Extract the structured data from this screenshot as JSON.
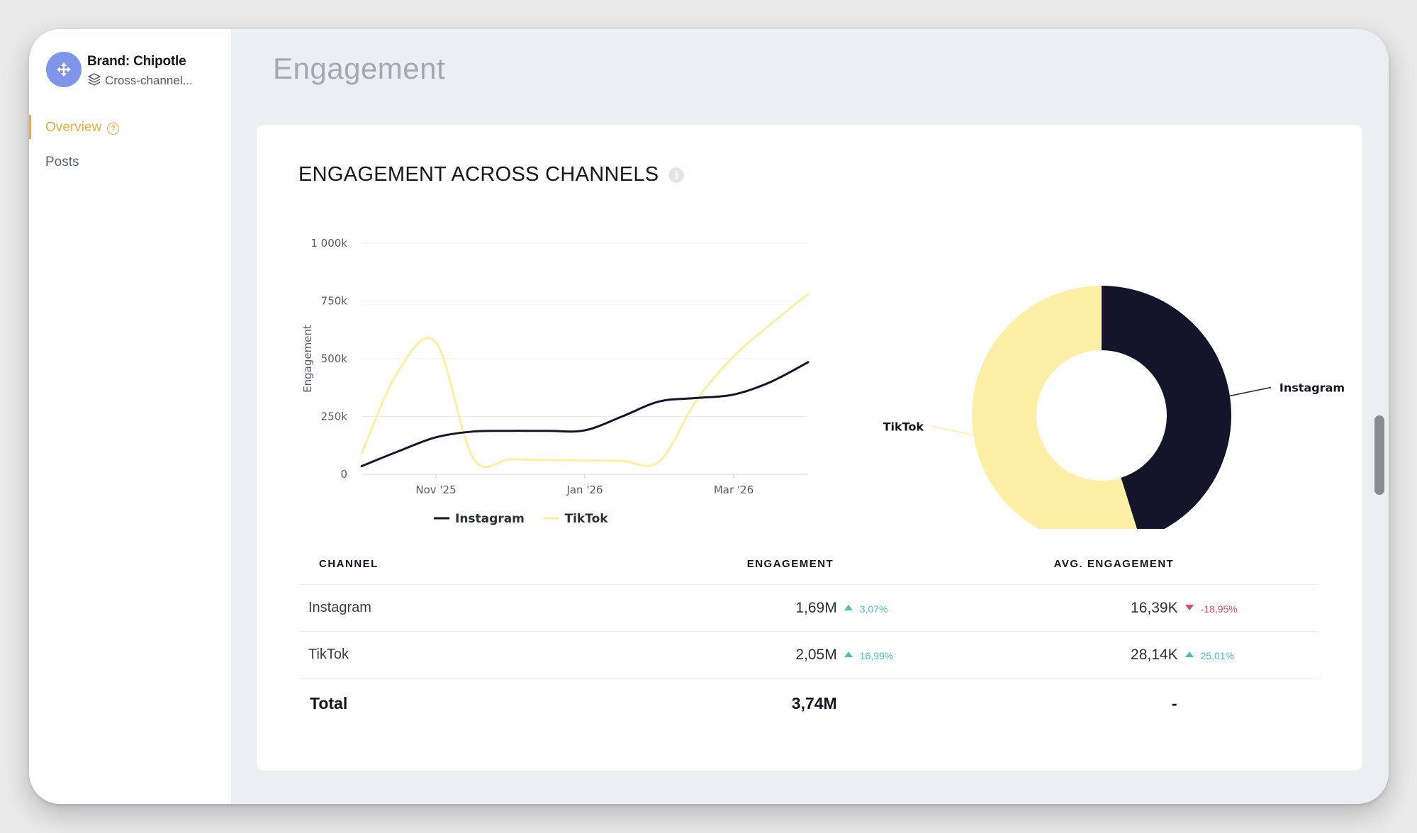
{
  "sidebar": {
    "brand_title": "Brand: Chipotle",
    "brand_subtitle": "Cross-channel...",
    "nav": [
      {
        "label": "Overview",
        "active": true,
        "help": "?"
      },
      {
        "label": "Posts",
        "active": false
      }
    ]
  },
  "page": {
    "title": "Engagement"
  },
  "card": {
    "title": "ENGAGEMENT ACROSS CHANNELS",
    "info_icon": "i"
  },
  "colors": {
    "instagram": "#14152b",
    "tiktok": "#fdf0a6",
    "accent": "#f4a93c",
    "positive": "#47c3b6",
    "negative": "#e34b5d"
  },
  "chart_data": [
    {
      "type": "line",
      "ylabel": "Engagement",
      "yticks": [
        "0",
        "250k",
        "500k",
        "750k",
        "1 000k"
      ],
      "ylim": [
        0,
        1000000
      ],
      "xticks": [
        "Nov '25",
        "Jan '26",
        "Mar '26"
      ],
      "xtick_positions": [
        2,
        6,
        10
      ],
      "xlim": [
        0,
        12
      ],
      "grid": true,
      "legend": "bottom",
      "series": [
        {
          "name": "Instagram",
          "color": "#14152b",
          "x": [
            0,
            1,
            2,
            3,
            4,
            5,
            6,
            7,
            8,
            9,
            10,
            11,
            12
          ],
          "values": [
            35000,
            100000,
            160000,
            185000,
            188000,
            188000,
            190000,
            250000,
            315000,
            330000,
            345000,
            400000,
            485000
          ]
        },
        {
          "name": "TikTok",
          "color": "#fdf0a6",
          "x": [
            0,
            1,
            2,
            3,
            4,
            5,
            6,
            7,
            8,
            9,
            10,
            11,
            12
          ],
          "values": [
            90000,
            450000,
            570000,
            70000,
            65000,
            62000,
            60000,
            58000,
            55000,
            320000,
            510000,
            650000,
            780000
          ]
        }
      ]
    },
    {
      "type": "pie",
      "donut": true,
      "categories": [
        "Instagram",
        "TikTok"
      ],
      "values": [
        1.69,
        2.05
      ],
      "colors": [
        "#14152b",
        "#fdf0a6"
      ]
    }
  ],
  "table": {
    "headers": [
      "CHANNEL",
      "ENGAGEMENT",
      "AVG. ENGAGEMENT"
    ],
    "rows": [
      {
        "channel": "Instagram",
        "engagement": "1,69M",
        "eng_delta": "3,07%",
        "eng_dir": "up",
        "avg": "16,39K",
        "avg_delta": "-18,95%",
        "avg_dir": "down"
      },
      {
        "channel": "TikTok",
        "engagement": "2,05M",
        "eng_delta": "16,99%",
        "eng_dir": "up",
        "avg": "28,14K",
        "avg_delta": "25,01%",
        "avg_dir": "up"
      }
    ],
    "total": {
      "label": "Total",
      "engagement": "3,74M",
      "avg": "-"
    }
  }
}
